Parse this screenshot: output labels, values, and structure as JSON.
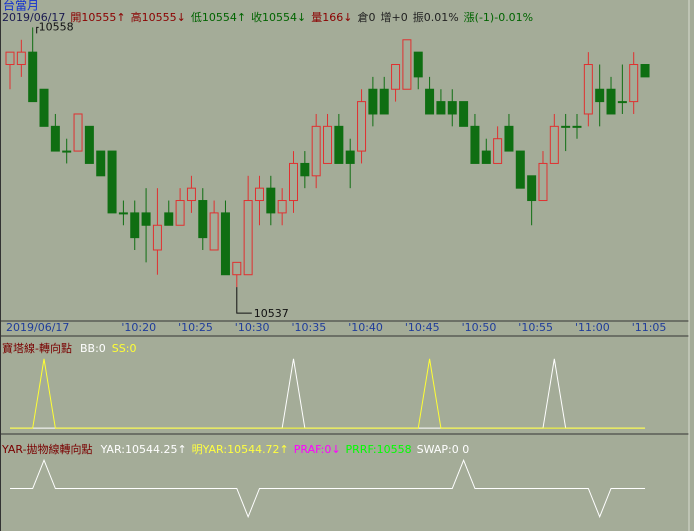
{
  "header": {
    "title": "台當月",
    "items": [
      {
        "text": "2019/06/17",
        "color": "#1a1a50"
      },
      {
        "text": "開10555↑",
        "color": "#8b0000"
      },
      {
        "text": "高10555↓",
        "color": "#8b0000"
      },
      {
        "text": "低10554↑",
        "color": "#006400"
      },
      {
        "text": "收10554↓",
        "color": "#006400"
      },
      {
        "text": "量166↓",
        "color": "#8b0000"
      },
      {
        "text": "倉0",
        "color": "#222222"
      },
      {
        "text": "增+0",
        "color": "#222222"
      },
      {
        "text": "振0.01%",
        "color": "#222222"
      },
      {
        "text": "漲(-1)-0.01%",
        "color": "#006400"
      }
    ]
  },
  "chart_data": [
    {
      "type": "candlestick",
      "up_color": "#e03030",
      "down_color": "#0f6e12",
      "categories": [
        "2019/06/17",
        null,
        null,
        null,
        null,
        null,
        null,
        null,
        null,
        null,
        "'10:20",
        null,
        null,
        null,
        null,
        "'10:25",
        null,
        null,
        null,
        null,
        "'10:30",
        null,
        null,
        null,
        null,
        "'10:35",
        null,
        null,
        null,
        null,
        "'10:40",
        null,
        null,
        null,
        null,
        "'10:45",
        null,
        null,
        null,
        null,
        "'10:50",
        null,
        null,
        null,
        null,
        "'10:55",
        null,
        null,
        null,
        null,
        "'11:00",
        null,
        null,
        null,
        null,
        "'11:05",
        null
      ],
      "ohlc": [
        [
          10555,
          10556,
          10553,
          10556
        ],
        [
          10555,
          10557,
          10554,
          10556
        ],
        [
          10556,
          10558,
          10552,
          10552
        ],
        [
          10553,
          10553,
          10550,
          10550
        ],
        [
          10550,
          10551,
          10548,
          10548
        ],
        [
          10548,
          10549,
          10547,
          10548
        ],
        [
          10548,
          10551,
          10548,
          10551
        ],
        [
          10550,
          10550,
          10547,
          10547
        ],
        [
          10548,
          10548,
          10546,
          10546
        ],
        [
          10548,
          10548,
          10543,
          10543
        ],
        [
          10543,
          10544,
          10542,
          10543
        ],
        [
          10543,
          10544,
          10540,
          10541
        ],
        [
          10543,
          10545,
          10539,
          10542
        ],
        [
          10540,
          10545,
          10538,
          10542
        ],
        [
          10543,
          10544,
          10542,
          10542
        ],
        [
          10542,
          10545,
          10542,
          10544
        ],
        [
          10544,
          10546,
          10543,
          10545
        ],
        [
          10544,
          10545,
          10540,
          10541
        ],
        [
          10540,
          10544,
          10540,
          10543
        ],
        [
          10543,
          10544,
          10538,
          10538
        ],
        [
          10538,
          10539,
          10537,
          10539
        ],
        [
          10538,
          10546,
          10538,
          10544
        ],
        [
          10544,
          10546,
          10542,
          10545
        ],
        [
          10545,
          10546,
          10542,
          10543
        ],
        [
          10543,
          10545,
          10542,
          10544
        ],
        [
          10544,
          10548,
          10543,
          10547
        ],
        [
          10547,
          10548,
          10545,
          10546
        ],
        [
          10546,
          10551,
          10545,
          10550
        ],
        [
          10547,
          10551,
          10547,
          10550
        ],
        [
          10550,
          10551,
          10547,
          10547
        ],
        [
          10548,
          10549,
          10545,
          10547
        ],
        [
          10548,
          10553,
          10547,
          10552
        ],
        [
          10553,
          10554,
          10550,
          10551
        ],
        [
          10553,
          10554,
          10551,
          10551
        ],
        [
          10553,
          10555,
          10552,
          10555
        ],
        [
          10553,
          10557,
          10553,
          10557
        ],
        [
          10556,
          10556,
          10553,
          10554
        ],
        [
          10553,
          10554,
          10551,
          10551
        ],
        [
          10552,
          10553,
          10551,
          10551
        ],
        [
          10552,
          10553,
          10550,
          10551
        ],
        [
          10552,
          10552,
          10550,
          10550
        ],
        [
          10550,
          10551,
          10547,
          10547
        ],
        [
          10548,
          10549,
          10547,
          10547
        ],
        [
          10547,
          10550,
          10547,
          10549
        ],
        [
          10550,
          10551,
          10548,
          10548
        ],
        [
          10548,
          10548,
          10545,
          10545
        ],
        [
          10546,
          10546,
          10542,
          10544
        ],
        [
          10544,
          10548,
          10544,
          10547
        ],
        [
          10547,
          10551,
          10547,
          10550
        ],
        [
          10550,
          10551,
          10548,
          10550
        ],
        [
          10550,
          10551,
          10549,
          10550
        ],
        [
          10551,
          10556,
          10550,
          10555
        ],
        [
          10553,
          10555,
          10550,
          10552
        ],
        [
          10553,
          10554,
          10551,
          10551
        ],
        [
          10552,
          10555,
          10551,
          10552
        ],
        [
          10552,
          10556,
          10551,
          10555
        ],
        [
          10555,
          10555,
          10554,
          10554
        ]
      ],
      "ylim": [
        10534.5,
        10558.6
      ],
      "high_label": "10558",
      "low_label": "10537"
    },
    {
      "type": "line",
      "title": "寶塔線-轉向點",
      "ylim": [
        -0.07,
        1.2
      ],
      "series": [
        {
          "name": "BB:0",
          "color": "#ffffff",
          "values": [
            0,
            0,
            0,
            0,
            0,
            0,
            0,
            0,
            0,
            0,
            0,
            0,
            0,
            0,
            0,
            0,
            0,
            0,
            0,
            0,
            0,
            0,
            0,
            0,
            0,
            1,
            0,
            0,
            0,
            0,
            0,
            0,
            0,
            0,
            0,
            0,
            0,
            0,
            0,
            0,
            0,
            0,
            0,
            0,
            0,
            0,
            0,
            0,
            1,
            0,
            0,
            0,
            0,
            0,
            0,
            0,
            0
          ]
        },
        {
          "name": "SS:0",
          "color": "#ffff33",
          "values": [
            0,
            0,
            0,
            1,
            0,
            0,
            0,
            0,
            0,
            0,
            0,
            0,
            0,
            0,
            0,
            0,
            0,
            0,
            0,
            0,
            0,
            0,
            0,
            0,
            0,
            0,
            0,
            0,
            0,
            0,
            0,
            0,
            0,
            0,
            0,
            0,
            0,
            1,
            0,
            0,
            0,
            0,
            0,
            0,
            0,
            0,
            0,
            0,
            0,
            0,
            0,
            0,
            0,
            0,
            0,
            0,
            0
          ]
        }
      ]
    },
    {
      "type": "line",
      "title": "YAR-拋物線轉向點",
      "ylim": [
        -1.5,
        1.5
      ],
      "readouts": [
        {
          "text": "YAR:10544.25↑",
          "color": "#ffffff"
        },
        {
          "text": "明YAR:10544.72↑",
          "color": "#ffff40"
        },
        {
          "text": "PRAF:0↓",
          "color": "#ff00ff"
        },
        {
          "text": "PRRF:10558",
          "color": "#00ff00"
        }
      ],
      "series": [
        {
          "name": "SWAP:0 0",
          "color": "#ffffff",
          "values": [
            0,
            0,
            0,
            1,
            0,
            0,
            0,
            0,
            0,
            0,
            0,
            0,
            0,
            0,
            0,
            0,
            0,
            0,
            0,
            0,
            0,
            -1,
            0,
            0,
            0,
            0,
            0,
            0,
            0,
            0,
            0,
            0,
            0,
            0,
            0,
            0,
            0,
            0,
            0,
            0,
            1,
            0,
            0,
            0,
            0,
            0,
            0,
            0,
            0,
            0,
            0,
            0,
            -1,
            0,
            0,
            0,
            0
          ]
        }
      ]
    }
  ]
}
